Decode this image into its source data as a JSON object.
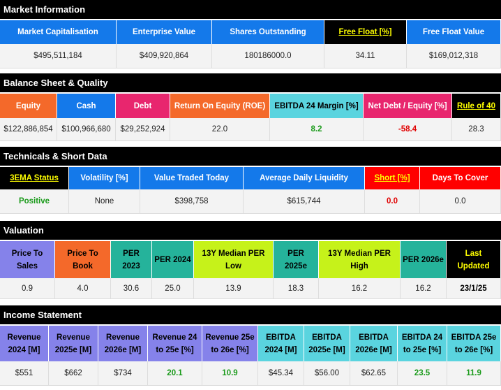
{
  "sections": [
    {
      "title": "Market Information",
      "headers": [
        "Market Capitalisation",
        "Enterprise Value",
        "Shares Outstanding",
        "Free Float [%]",
        "Free Float Value"
      ],
      "values": [
        "$495,511,184",
        "$409,920,864",
        "180186000.0",
        "34.11",
        "$169,012,318"
      ]
    },
    {
      "title": "Balance Sheet & Quality",
      "headers": [
        "Equity",
        "Cash",
        "Debt",
        "Return On Equity (ROE)",
        "EBITDA 24 Margin [%]",
        "Net Debt / Equity [%]",
        "Rule of 40"
      ],
      "values": [
        "$122,886,854",
        "$100,966,680",
        "$29,252,924",
        "22.0",
        "8.2",
        "-58.4",
        "28.3"
      ]
    },
    {
      "title": "Technicals & Short Data",
      "headers": [
        "3EMA Status",
        "Volatility [%]",
        "Value Traded Today",
        "Average Daily Liquidity",
        "Short [%]",
        "Days To Cover"
      ],
      "values": [
        "Positive",
        "None",
        "$398,758",
        "$615,744",
        "0.0",
        "0.0"
      ]
    },
    {
      "title": "Valuation",
      "headers": [
        "Price To Sales",
        "Price To Book",
        "PER 2023",
        "PER 2024",
        "13Y Median PER Low",
        "PER 2025e",
        "13Y Median PER High",
        "PER 2026e",
        "Last Updated"
      ],
      "values": [
        "0.9",
        "4.0",
        "30.6",
        "25.0",
        "13.9",
        "18.3",
        "16.2",
        "16.2",
        "23/1/25"
      ]
    },
    {
      "title": "Income Statement",
      "headers": [
        "Revenue 2024 [M]",
        "Revenue 2025e [M]",
        "Revenue 2026e [M]",
        "Revenue 24 to 25e [%]",
        "Revenue 25e to 26e [%]",
        "EBITDA 2024 [M]",
        "EBITDA 2025e [M]",
        "EBITDA 2026e [M]",
        "EBITDA 24 to 25e [%]",
        "EBITDA 25e to 26e [%]"
      ],
      "values": [
        "$551",
        "$662",
        "$734",
        "20.1",
        "10.9",
        "$45.34",
        "$56.00",
        "$62.65",
        "23.5",
        "11.9"
      ]
    }
  ]
}
